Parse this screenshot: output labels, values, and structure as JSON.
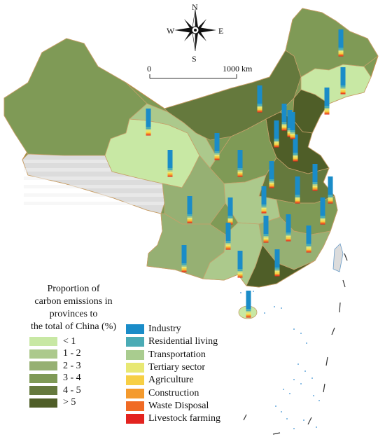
{
  "compass": {
    "north": "N",
    "south": "S",
    "east": "E",
    "west": "W"
  },
  "scale_bar": {
    "start_label": "0",
    "end_label": "1000 km"
  },
  "legend_ranges": {
    "title_lines": [
      "Proportion of",
      "carbon emissions in",
      "provinces to",
      "the total of China (%)"
    ],
    "items": [
      {
        "label": "< 1",
        "color": "#c8e8a4"
      },
      {
        "label": "1 - 2",
        "color": "#acc98c"
      },
      {
        "label": "2 - 3",
        "color": "#96b073"
      },
      {
        "label": "3 - 4",
        "color": "#7f9a56"
      },
      {
        "label": "4 - 5",
        "color": "#65793d"
      },
      {
        "label": "> 5",
        "color": "#4f5e28"
      }
    ]
  },
  "legend_sectors": {
    "items": [
      {
        "label": "Industry",
        "color": "#1a8cc8"
      },
      {
        "label": "Residential living",
        "color": "#4aabb5"
      },
      {
        "label": "Transportation",
        "color": "#a9cc8f"
      },
      {
        "label": "Tertiary sector",
        "color": "#e8e873"
      },
      {
        "label": "Agriculture",
        "color": "#f7cf45"
      },
      {
        "label": "Construction",
        "color": "#f49a2d"
      },
      {
        "label": "Waste Disposal",
        "color": "#f06a24"
      },
      {
        "label": "Livestock farming",
        "color": "#e3231f"
      }
    ]
  },
  "no_data_color": "#dcdcdc",
  "sea_island_color": "#3a8fd0"
}
